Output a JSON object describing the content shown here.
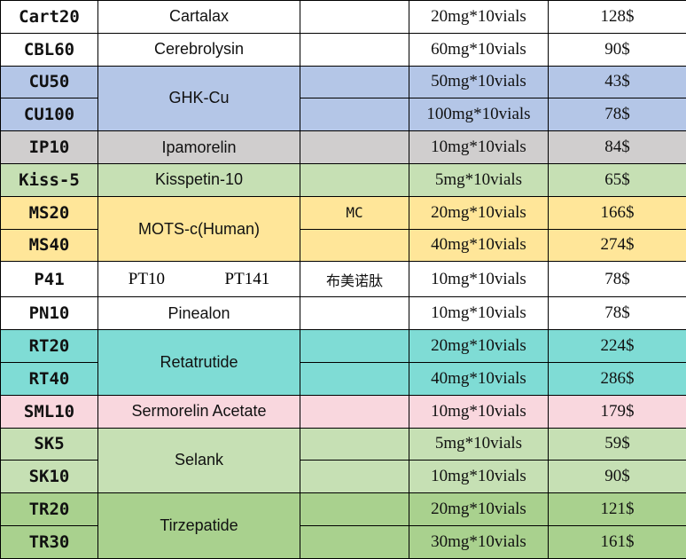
{
  "rows": [
    {
      "code": "Cart20",
      "name": "Cartalax",
      "note": "",
      "spec": "20mg*10vials",
      "price": "128$"
    },
    {
      "code": "CBL60",
      "name": "Cerebrolysin",
      "note": "",
      "spec": "60mg*10vials",
      "price": "90$"
    },
    {
      "code": "CU50",
      "name": "GHK-Cu",
      "note": "",
      "spec": "50mg*10vials",
      "price": "43$"
    },
    {
      "code": "CU100",
      "note": "",
      "spec": "100mg*10vials",
      "price": "78$"
    },
    {
      "code": "IP10",
      "name": "Ipamorelin",
      "note": "",
      "spec": "10mg*10vials",
      "price": "84$"
    },
    {
      "code": "Kiss-5",
      "name": "Kisspetin-10",
      "note": "",
      "spec": "5mg*10vials",
      "price": "65$"
    },
    {
      "code": "MS20",
      "name": "MOTS-c(Human)",
      "note": "MC",
      "spec": "20mg*10vials",
      "price": "166$"
    },
    {
      "code": "MS40",
      "note": "",
      "spec": "40mg*10vials",
      "price": "274$"
    },
    {
      "code": "P41",
      "name_a": "PT10",
      "name_b": "PT141",
      "note": "布美诺肽",
      "spec": "10mg*10vials",
      "price": "78$"
    },
    {
      "code": "PN10",
      "name": "Pinealon",
      "note": "",
      "spec": "10mg*10vials",
      "price": "78$"
    },
    {
      "code": "RT20",
      "name": "Retatrutide",
      "note": "",
      "spec": "20mg*10vials",
      "price": "224$"
    },
    {
      "code": "RT40",
      "note": "",
      "spec": "40mg*10vials",
      "price": "286$"
    },
    {
      "code": "SML10",
      "name": "Sermorelin Acetate",
      "note": "",
      "spec": "10mg*10vials",
      "price": "179$"
    },
    {
      "code": "SK5",
      "name": "Selank",
      "note": "",
      "spec": "5mg*10vials",
      "price": "59$"
    },
    {
      "code": "SK10",
      "note": "",
      "spec": "10mg*10vials",
      "price": "90$"
    },
    {
      "code": "TR20",
      "name": "Tirzepatide",
      "note": "",
      "spec": "20mg*10vials",
      "price": "121$"
    },
    {
      "code": "TR30",
      "note": "",
      "spec": "30mg*10vials",
      "price": "161$"
    }
  ],
  "colors": {
    "white": "#ffffff",
    "blue": "#b4c6e7",
    "gray": "#d0cece",
    "green_light": "#c6e0b4",
    "yellow": "#ffe699",
    "teal": "#7fdcd5",
    "pink": "#f9d7de",
    "green_dark": "#a9d18e"
  }
}
